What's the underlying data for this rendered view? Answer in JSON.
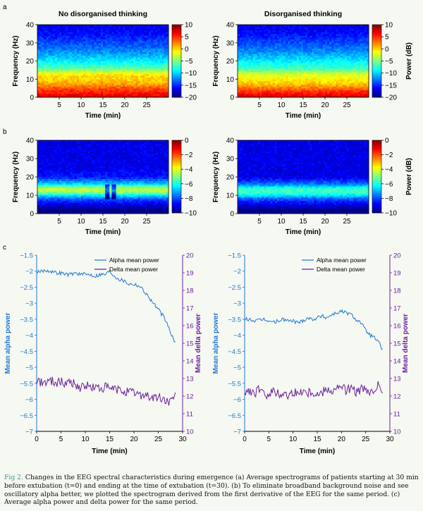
{
  "figure": {
    "panel_labels": [
      "a",
      "b",
      "c"
    ],
    "caption_label": "Fig 2.",
    "caption_text": "Changes in the EEG spectral characteristics during emergence (a) Average spectrograms of patients starting at 30 min before extubation (t=0) and ending at the time of extubation (t=30). (b) To eliminate broadband background noise and see oscillatory alpha better, we plotted the spectrogram derived from the first derivative of the EEG for the same period. (c) Average alpha power and delta power for the same period."
  },
  "chart_data": [
    {
      "id": "a-left",
      "type": "heatmap",
      "panel": "a",
      "title": "No disorganised thinking",
      "xlabel": "Time (min)",
      "ylabel": "Frequency (Hz)",
      "xlim": [
        0,
        30
      ],
      "ylim": [
        0,
        40
      ],
      "xticks": [
        "5",
        "10",
        "15",
        "20",
        "25"
      ],
      "yticks": [
        "0",
        "10",
        "20",
        "30",
        "40"
      ],
      "colorbar": {
        "ticks": [
          "10",
          "5",
          "0",
          "−5",
          "−10",
          "−15",
          "−20"
        ],
        "range": [
          -20,
          10
        ],
        "label": ""
      },
      "power_by_frequency_db": {
        "frequency_hz": [
          0,
          2,
          5,
          8,
          10,
          12,
          14,
          16,
          20,
          25,
          30,
          35,
          40
        ],
        "power_db": [
          8,
          6,
          4,
          1,
          0,
          0,
          -3,
          -6,
          -9,
          -12,
          -14,
          -16,
          -17
        ]
      }
    },
    {
      "id": "a-right",
      "type": "heatmap",
      "panel": "a",
      "title": "Disorganised thinking",
      "xlabel": "Time (min)",
      "ylabel": "Frequency (Hz)",
      "xlim": [
        0,
        30
      ],
      "ylim": [
        0,
        40
      ],
      "xticks": [
        "5",
        "10",
        "15",
        "20",
        "25"
      ],
      "yticks": [
        "0",
        "10",
        "20",
        "30",
        "40"
      ],
      "colorbar": {
        "ticks": [
          "10",
          "5",
          "0",
          "−5",
          "−10",
          "−15",
          "−20"
        ],
        "range": [
          -20,
          10
        ],
        "label": "Power (dB)"
      },
      "power_by_frequency_db": {
        "frequency_hz": [
          0,
          2,
          5,
          8,
          10,
          12,
          14,
          16,
          20,
          25,
          30,
          35,
          40
        ],
        "power_db": [
          8,
          6,
          3,
          0,
          -1,
          -2,
          -4,
          -7,
          -9,
          -12,
          -14,
          -16,
          -17
        ]
      }
    },
    {
      "id": "b-left",
      "type": "heatmap",
      "panel": "b",
      "title": "",
      "xlabel": "Time (min)",
      "ylabel": "Frequency (Hz)",
      "xlim": [
        0,
        30
      ],
      "ylim": [
        0,
        40
      ],
      "xticks": [
        "5",
        "10",
        "15",
        "20",
        "25"
      ],
      "yticks": [
        "0",
        "10",
        "20",
        "30",
        "40"
      ],
      "colorbar": {
        "ticks": [
          "0",
          "−2",
          "−4",
          "−6",
          "−8",
          "−10"
        ],
        "range": [
          -10,
          0
        ],
        "label": ""
      },
      "power_by_frequency_db": {
        "frequency_hz": [
          0,
          2,
          5,
          8,
          10,
          12,
          14,
          16,
          20,
          25,
          30,
          35,
          40
        ],
        "power_db": [
          -10,
          -10,
          -9,
          -8,
          -6.5,
          -4.5,
          -4.5,
          -6.5,
          -8.5,
          -9,
          -9,
          -9,
          -9
        ]
      }
    },
    {
      "id": "b-right",
      "type": "heatmap",
      "panel": "b",
      "title": "",
      "xlabel": "Time (min)",
      "ylabel": "Frequency (Hz)",
      "xlim": [
        0,
        30
      ],
      "ylim": [
        0,
        40
      ],
      "xticks": [
        "5",
        "10",
        "15",
        "20",
        "25"
      ],
      "yticks": [
        "0",
        "10",
        "20",
        "30",
        "40"
      ],
      "colorbar": {
        "ticks": [
          "0",
          "−2",
          "−4",
          "−6",
          "−8",
          "−10"
        ],
        "range": [
          -10,
          0
        ],
        "label": "Power (dB)"
      },
      "power_by_frequency_db": {
        "frequency_hz": [
          0,
          2,
          5,
          8,
          10,
          12,
          14,
          16,
          20,
          25,
          30,
          35,
          40
        ],
        "power_db": [
          -10,
          -10,
          -9,
          -8,
          -6.5,
          -5.5,
          -6,
          -7.5,
          -9,
          -9,
          -9,
          -9,
          -9
        ]
      }
    },
    {
      "id": "c-left",
      "type": "line",
      "panel": "c",
      "xlabel": "Time (min)",
      "ylabel": "Mean alpha power",
      "ylabel_right": "Mean delta power",
      "xlim": [
        0,
        30
      ],
      "ylim": [
        -7,
        -1.5
      ],
      "ylim_right": [
        10,
        20
      ],
      "xticks": [
        "0",
        "5",
        "10",
        "15",
        "20",
        "25",
        "30"
      ],
      "yticks": [
        "−1.5",
        "−2",
        "−2.5",
        "−3",
        "−3.5",
        "−4",
        "−4.5",
        "−5",
        "−5.5",
        "−6",
        "−6.5",
        "−7"
      ],
      "yticks_right": [
        "20",
        "19",
        "18",
        "17",
        "16",
        "15",
        "14",
        "13",
        "12",
        "11",
        "10"
      ],
      "series": [
        {
          "name": "Alpha mean power",
          "axis": "left",
          "color": "#1f78d1",
          "x": [
            0,
            1,
            2,
            3,
            4,
            5,
            6,
            7,
            8,
            9,
            10,
            11,
            12,
            13,
            14,
            15,
            16,
            17,
            18,
            19,
            20,
            21,
            22,
            23,
            24,
            25,
            26,
            27,
            28,
            28.5
          ],
          "y": [
            -2.05,
            -2.0,
            -1.97,
            -2.0,
            -2.05,
            -2.05,
            -2.1,
            -2.1,
            -2.05,
            -2.1,
            -2.1,
            -2.1,
            -2.15,
            -2.1,
            -2.1,
            -2.0,
            -2.15,
            -2.25,
            -2.3,
            -2.4,
            -2.4,
            -2.45,
            -2.6,
            -2.8,
            -3.0,
            -3.2,
            -3.4,
            -3.7,
            -4.1,
            -4.25
          ]
        },
        {
          "name": "Delta mean power",
          "axis": "right",
          "color": "#6a1f9a",
          "x": [
            0,
            1,
            2,
            3,
            4,
            5,
            6,
            7,
            8,
            9,
            10,
            11,
            12,
            13,
            14,
            15,
            16,
            17,
            18,
            19,
            20,
            21,
            22,
            23,
            24,
            25,
            26,
            27,
            28,
            28.5
          ],
          "y": [
            12.9,
            12.8,
            12.8,
            12.9,
            12.8,
            12.8,
            12.7,
            12.9,
            12.6,
            12.5,
            12.6,
            12.5,
            12.5,
            12.4,
            12.5,
            12.4,
            12.4,
            12.3,
            12.3,
            12.2,
            12.2,
            12.1,
            12.1,
            12.0,
            11.9,
            11.9,
            11.8,
            11.7,
            11.7,
            12.0
          ]
        }
      ],
      "legend": "top-right"
    },
    {
      "id": "c-right",
      "type": "line",
      "panel": "c",
      "xlabel": "Time (min)",
      "ylabel": "Mean alpha power",
      "ylabel_right": "Mean delta power",
      "xlim": [
        0,
        30
      ],
      "ylim": [
        -7,
        -1.5
      ],
      "ylim_right": [
        10,
        20
      ],
      "xticks": [
        "0",
        "5",
        "10",
        "15",
        "20",
        "25",
        "30"
      ],
      "yticks": [
        "−1.5",
        "−2",
        "−2.5",
        "−3",
        "−3.5",
        "−4",
        "−4.5",
        "−5",
        "−5.5",
        "−6",
        "−6.5",
        "−7"
      ],
      "yticks_right": [
        "20",
        "19",
        "18",
        "17",
        "16",
        "15",
        "14",
        "13",
        "12",
        "11",
        "10"
      ],
      "series": [
        {
          "name": "Alpha mean power",
          "axis": "left",
          "color": "#1f78d1",
          "x": [
            0,
            1,
            2,
            3,
            4,
            5,
            6,
            7,
            8,
            9,
            10,
            11,
            12,
            13,
            14,
            15,
            16,
            17,
            18,
            19,
            20,
            21,
            22,
            23,
            24,
            25,
            26,
            27,
            28,
            28.5
          ],
          "y": [
            -3.5,
            -3.5,
            -3.55,
            -3.55,
            -3.5,
            -3.55,
            -3.6,
            -3.55,
            -3.5,
            -3.55,
            -3.55,
            -3.6,
            -3.55,
            -3.45,
            -3.5,
            -3.45,
            -3.4,
            -3.45,
            -3.35,
            -3.3,
            -3.25,
            -3.3,
            -3.35,
            -3.5,
            -3.6,
            -3.85,
            -4.0,
            -4.1,
            -4.3,
            -4.45
          ]
        },
        {
          "name": "Delta mean power",
          "axis": "right",
          "color": "#6a1f9a",
          "x": [
            0,
            1,
            2,
            3,
            4,
            5,
            6,
            7,
            8,
            9,
            10,
            11,
            12,
            13,
            14,
            15,
            16,
            17,
            18,
            19,
            20,
            21,
            22,
            23,
            24,
            25,
            26,
            27,
            28,
            28.5
          ],
          "y": [
            12.2,
            12.3,
            12.1,
            12.4,
            12.0,
            12.2,
            12.3,
            12.1,
            12.2,
            12.0,
            12.3,
            12.1,
            12.4,
            12.2,
            12.3,
            12.1,
            12.2,
            12.5,
            12.3,
            12.4,
            12.6,
            12.3,
            12.5,
            12.2,
            12.4,
            12.3,
            12.1,
            12.4,
            12.7,
            12.2
          ]
        }
      ],
      "legend": "top-right"
    }
  ]
}
